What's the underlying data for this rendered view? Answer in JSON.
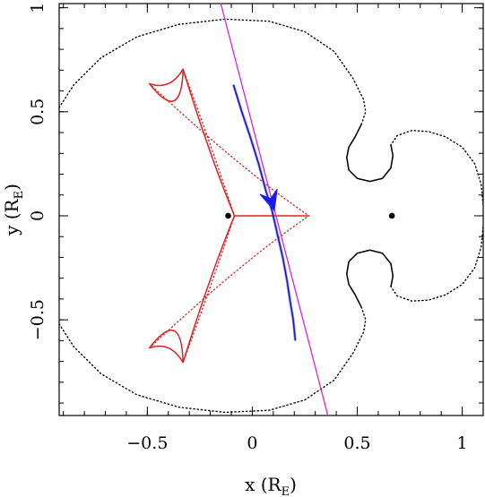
{
  "chart_data": {
    "type": "scatter",
    "title": "",
    "xlabel": "x (R",
    "xlabel_sub": "E",
    "xlabel_close": ")",
    "ylabel": "y (R",
    "ylabel_sub": "E",
    "ylabel_close": ")",
    "xlim": [
      -0.92,
      1.1
    ],
    "ylim": [
      -0.96,
      1.02
    ],
    "xticks": [
      -0.5,
      0,
      0.5,
      1
    ],
    "xtick_labels": [
      "−0.5",
      "0",
      "0.5",
      "1"
    ],
    "yticks": [
      -0.5,
      0,
      0.5,
      1
    ],
    "ytick_labels": [
      "−0.5",
      "0",
      "0.5",
      "1"
    ],
    "grid": false,
    "lenses": [
      {
        "x": -0.115,
        "y": 0
      },
      {
        "x": 0.665,
        "y": 0
      }
    ],
    "caustic": {
      "color": "#dd2222",
      "cusps": [
        {
          "x": -0.49,
          "y": 0.635
        },
        {
          "x": -0.33,
          "y": 0.705
        },
        {
          "x": 0.27,
          "y": 0
        },
        {
          "x": -0.33,
          "y": -0.705
        },
        {
          "x": -0.49,
          "y": -0.635
        },
        {
          "x": -0.085,
          "y": 0
        }
      ]
    },
    "critical_curve": {
      "color": "#000000",
      "points": [
        {
          "x": -0.92,
          "y": 0.52
        },
        {
          "x": -0.85,
          "y": 0.63
        },
        {
          "x": -0.72,
          "y": 0.76
        },
        {
          "x": -0.55,
          "y": 0.86
        },
        {
          "x": -0.35,
          "y": 0.92
        },
        {
          "x": -0.13,
          "y": 0.945
        },
        {
          "x": 0.08,
          "y": 0.935
        },
        {
          "x": 0.25,
          "y": 0.885
        },
        {
          "x": 0.39,
          "y": 0.79
        },
        {
          "x": 0.48,
          "y": 0.66
        },
        {
          "x": 0.53,
          "y": 0.56
        },
        {
          "x": 0.54,
          "y": 0.5
        },
        {
          "x": 0.52,
          "y": 0.44
        },
        {
          "x": 0.49,
          "y": 0.38
        },
        {
          "x": 0.46,
          "y": 0.33
        },
        {
          "x": 0.45,
          "y": 0.28
        },
        {
          "x": 0.46,
          "y": 0.22
        },
        {
          "x": 0.5,
          "y": 0.18
        },
        {
          "x": 0.56,
          "y": 0.165
        },
        {
          "x": 0.62,
          "y": 0.18
        },
        {
          "x": 0.66,
          "y": 0.23
        },
        {
          "x": 0.67,
          "y": 0.29
        },
        {
          "x": 0.66,
          "y": 0.34
        },
        {
          "x": 0.69,
          "y": 0.385
        },
        {
          "x": 0.76,
          "y": 0.41
        },
        {
          "x": 0.84,
          "y": 0.405
        },
        {
          "x": 0.92,
          "y": 0.38
        },
        {
          "x": 1.0,
          "y": 0.33
        },
        {
          "x": 1.06,
          "y": 0.25
        },
        {
          "x": 1.09,
          "y": 0.15
        },
        {
          "x": 1.1,
          "y": 0.05
        }
      ]
    },
    "source_line": {
      "color": "#dd22dd",
      "x": [
        -0.15,
        0.36
      ],
      "y": [
        1.02,
        -0.96
      ]
    },
    "light_curve_track": {
      "color": "#1a1acc",
      "points": [
        {
          "x": -0.09,
          "y": 0.63
        },
        {
          "x": -0.05,
          "y": 0.5
        },
        {
          "x": -0.01,
          "y": 0.38
        },
        {
          "x": 0.03,
          "y": 0.25
        },
        {
          "x": 0.065,
          "y": 0.12
        },
        {
          "x": 0.095,
          "y": 0.02
        },
        {
          "x": 0.12,
          "y": -0.09
        },
        {
          "x": 0.145,
          "y": -0.2
        },
        {
          "x": 0.165,
          "y": -0.31
        },
        {
          "x": 0.18,
          "y": -0.41
        },
        {
          "x": 0.195,
          "y": -0.5
        },
        {
          "x": 0.205,
          "y": -0.6
        }
      ],
      "arrow": {
        "x": 0.09,
        "y": 0.075,
        "dx": 0.015,
        "dy": -0.05
      }
    }
  }
}
